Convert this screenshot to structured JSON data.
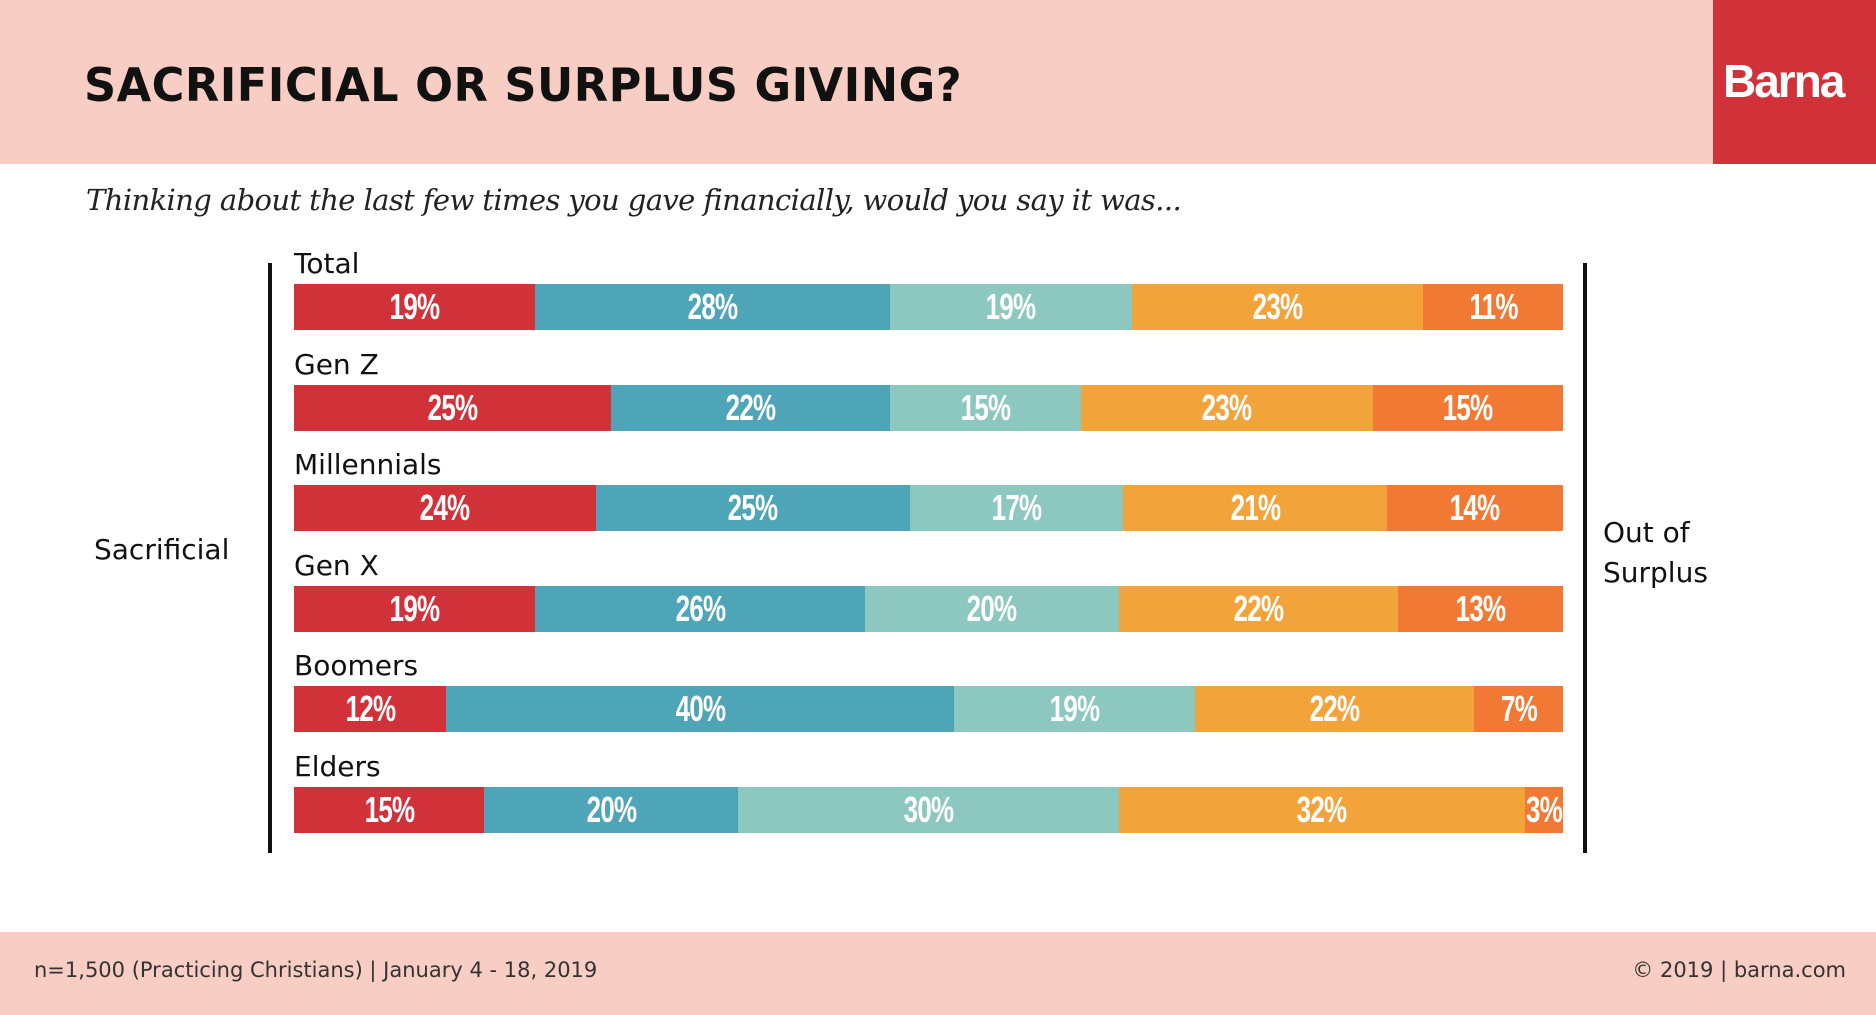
{
  "header": {
    "title": "SACRIFICIAL OR SURPLUS GIVING?",
    "logo_text": "Barna",
    "background_color": "#F7CDC4",
    "logo_color": "#D13239"
  },
  "question": "Thinking about the last few times you gave financially, would you say it was...",
  "chart_data": {
    "type": "bar",
    "orientation": "horizontal-stacked-100",
    "title": "SACRIFICIAL OR SURPLUS GIVING?",
    "subtitle": "Thinking about the last few times you gave financially, would you say it was...",
    "scale_left_label": "Sacrificial",
    "scale_right_label": "Out of Surplus",
    "value_suffix": "%",
    "segment_colors": [
      "#D13239",
      "#4FA5B8",
      "#8CC8C0",
      "#F2A43A",
      "#F27933"
    ],
    "categories": [
      "Total",
      "Gen Z",
      "Millennials",
      "Gen X",
      "Boomers",
      "Elders"
    ],
    "rows": [
      {
        "label": "Total",
        "values": [
          19,
          28,
          19,
          23,
          11
        ]
      },
      {
        "label": "Gen Z",
        "values": [
          25,
          22,
          15,
          23,
          15
        ]
      },
      {
        "label": "Millennials",
        "values": [
          24,
          25,
          17,
          21,
          14
        ]
      },
      {
        "label": "Gen X",
        "values": [
          19,
          26,
          20,
          22,
          13
        ]
      },
      {
        "label": "Boomers",
        "values": [
          12,
          40,
          19,
          22,
          7
        ]
      },
      {
        "label": "Elders",
        "values": [
          15,
          20,
          30,
          32,
          3
        ]
      }
    ]
  },
  "footer": {
    "sample": "n=1,500 (Practicing Christians)  |  January 4 - 18, 2019",
    "copyright": "© 2019 | barna.com"
  }
}
